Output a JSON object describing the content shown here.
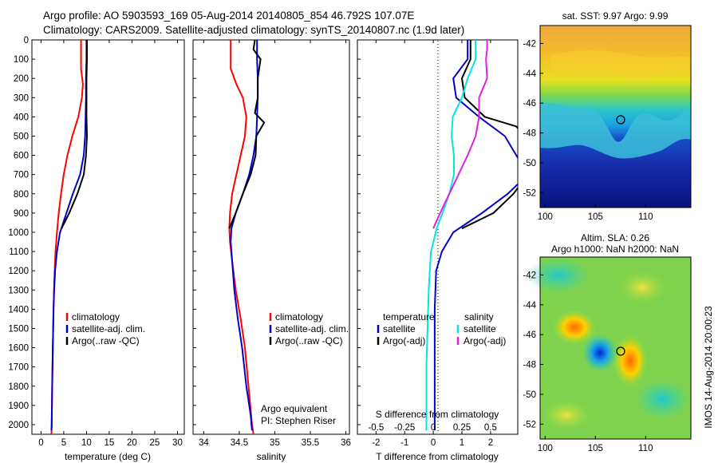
{
  "header": {
    "line1": "Argo profile: AO 5903593_169 05-Aug-2014 20140805_854 46.792S 107.07E",
    "line2": "Climatology: CARS2009. Satellite-adjusted climatology: synTS_20140807.nc (1.9d later)"
  },
  "colors": {
    "climatology": "#ff0000",
    "satellite": "#0000cc",
    "argo": "#000000",
    "salinity_satellite": "#00e5e5",
    "salinity_argo": "#e020e0"
  },
  "chart_data": [
    {
      "type": "line",
      "panel": "temperature",
      "xlabel": "temperature (deg C)",
      "xticks": [
        "0",
        "5",
        "10",
        "15",
        "20",
        "25",
        "30"
      ],
      "xlim": [
        -2,
        31.5
      ],
      "ylim": [
        0,
        2050
      ],
      "yticks": [
        "0",
        "100",
        "200",
        "300",
        "400",
        "500",
        "600",
        "700",
        "800",
        "900",
        "1000",
        "1100",
        "1200",
        "1300",
        "1400",
        "1500",
        "1600",
        "1700",
        "1800",
        "1900",
        "2000"
      ],
      "legend": [
        "climatology",
        "satellite-adj. clim.",
        "Argo(..raw -QC)"
      ],
      "series": [
        {
          "name": "climatology",
          "color": "#ff0000",
          "points": [
            [
              8.8,
              0
            ],
            [
              8.8,
              150
            ],
            [
              9.2,
              230
            ],
            [
              9.0,
              300
            ],
            [
              8.2,
              400
            ],
            [
              6.9,
              500
            ],
            [
              5.8,
              600
            ],
            [
              5.0,
              700
            ],
            [
              4.4,
              800
            ],
            [
              3.9,
              900
            ],
            [
              3.5,
              1000
            ],
            [
              3.2,
              1100
            ],
            [
              3.0,
              1200
            ],
            [
              2.85,
              1300
            ],
            [
              2.75,
              1400
            ],
            [
              2.6,
              1600
            ],
            [
              2.45,
              1800
            ],
            [
              2.35,
              2000
            ],
            [
              2.3,
              2050
            ]
          ]
        },
        {
          "name": "satellite-adj. clim.",
          "color": "#0000cc",
          "points": [
            [
              10.0,
              0
            ],
            [
              10.0,
              100
            ],
            [
              9.9,
              200
            ],
            [
              9.9,
              300
            ],
            [
              9.8,
              400
            ],
            [
              9.7,
              500
            ],
            [
              9.4,
              600
            ],
            [
              8.6,
              700
            ],
            [
              7.0,
              800
            ],
            [
              5.6,
              900
            ],
            [
              4.2,
              1000
            ],
            [
              3.5,
              1100
            ],
            [
              3.1,
              1200
            ],
            [
              2.9,
              1300
            ],
            [
              2.75,
              1400
            ],
            [
              2.6,
              1600
            ],
            [
              2.45,
              1800
            ],
            [
              2.35,
              2000
            ],
            [
              2.3,
              2030
            ]
          ]
        },
        {
          "name": "Argo(..raw -QC)",
          "color": "#000000",
          "points": [
            [
              10.1,
              0
            ],
            [
              10.1,
              100
            ],
            [
              10.0,
              200
            ],
            [
              10.0,
              300
            ],
            [
              10.0,
              400
            ],
            [
              10.1,
              500
            ],
            [
              9.9,
              600
            ],
            [
              9.4,
              700
            ],
            [
              8.0,
              800
            ],
            [
              6.2,
              900
            ],
            [
              4.5,
              980
            ]
          ]
        }
      ]
    },
    {
      "type": "line",
      "panel": "salinity",
      "xlabel": "salinity",
      "xticks": [
        "34",
        "34.5",
        "35",
        "35.5",
        "36"
      ],
      "xlim": [
        33.85,
        36.05
      ],
      "ylim": [
        0,
        2050
      ],
      "legend": [
        "climatology",
        "satellite-adj. clim.",
        "Argo(..raw -QC)"
      ],
      "annotation": [
        "Argo equivalent",
        "PI: Stephen Riser"
      ],
      "series": [
        {
          "name": "climatology",
          "color": "#ff0000",
          "points": [
            [
              34.38,
              0
            ],
            [
              34.38,
              150
            ],
            [
              34.46,
              230
            ],
            [
              34.55,
              300
            ],
            [
              34.6,
              400
            ],
            [
              34.58,
              500
            ],
            [
              34.52,
              600
            ],
            [
              34.46,
              700
            ],
            [
              34.4,
              800
            ],
            [
              34.37,
              900
            ],
            [
              34.36,
              980
            ],
            [
              34.37,
              1050
            ],
            [
              34.4,
              1150
            ],
            [
              34.45,
              1300
            ],
            [
              34.52,
              1450
            ],
            [
              34.58,
              1600
            ],
            [
              34.63,
              1800
            ],
            [
              34.68,
              2000
            ],
            [
              34.7,
              2050
            ]
          ]
        },
        {
          "name": "satellite-adj. clim.",
          "color": "#0000cc",
          "points": [
            [
              34.75,
              0
            ],
            [
              34.75,
              100
            ],
            [
              34.76,
              200
            ],
            [
              34.76,
              300
            ],
            [
              34.75,
              400
            ],
            [
              34.74,
              500
            ],
            [
              34.7,
              600
            ],
            [
              34.64,
              700
            ],
            [
              34.55,
              800
            ],
            [
              34.45,
              900
            ],
            [
              34.39,
              980
            ],
            [
              34.38,
              1050
            ],
            [
              34.4,
              1150
            ],
            [
              34.43,
              1300
            ],
            [
              34.48,
              1450
            ],
            [
              34.54,
              1600
            ],
            [
              34.6,
              1800
            ],
            [
              34.66,
              1950
            ],
            [
              34.68,
              2030
            ]
          ]
        },
        {
          "name": "Argo(..raw -QC)",
          "color": "#000000",
          "points": [
            [
              34.72,
              0
            ],
            [
              34.7,
              50
            ],
            [
              34.8,
              100
            ],
            [
              34.76,
              200
            ],
            [
              34.76,
              300
            ],
            [
              34.72,
              380
            ],
            [
              34.85,
              430
            ],
            [
              34.74,
              500
            ],
            [
              34.73,
              600
            ],
            [
              34.66,
              700
            ],
            [
              34.55,
              800
            ],
            [
              34.45,
              900
            ],
            [
              34.36,
              980
            ]
          ]
        }
      ]
    },
    {
      "type": "line",
      "panel": "difference",
      "xlabel": "T difference from climatology",
      "xlabel2": "S difference from climatology",
      "xticks": [
        "-2",
        "-1",
        "0",
        "1",
        "2"
      ],
      "xticks_s": [
        "-0.5",
        "-0.25",
        "0",
        "0.25",
        "0.5"
      ],
      "xlim": [
        -2.65,
        2.95
      ],
      "ylim": [
        0,
        2050
      ],
      "legend_titles": [
        "temperature",
        "salinity"
      ],
      "legend": [
        "satellite",
        "Argo(-adj)",
        "satellite",
        "Argo(-adj)"
      ],
      "series": [
        {
          "name": "temperature satellite",
          "color": "#0000cc",
          "points": [
            [
              1.2,
              0
            ],
            [
              1.2,
              100
            ],
            [
              0.7,
              200
            ],
            [
              0.8,
              300
            ],
            [
              1.6,
              400
            ],
            [
              2.5,
              500
            ],
            [
              2.9,
              600
            ],
            [
              3.3,
              700
            ],
            [
              2.6,
              800
            ],
            [
              1.7,
              900
            ],
            [
              0.7,
              1000
            ],
            [
              0.3,
              1100
            ],
            [
              0.1,
              1200
            ],
            [
              0.05,
              1400
            ],
            [
              0.05,
              1700
            ],
            [
              0.05,
              2030
            ]
          ]
        },
        {
          "name": "temperature Argo(-adj)",
          "color": "#000000",
          "points": [
            [
              1.3,
              0
            ],
            [
              1.3,
              100
            ],
            [
              1.0,
              200
            ],
            [
              1.1,
              300
            ],
            [
              1.8,
              400
            ],
            [
              2.9,
              450
            ],
            [
              3.2,
              500
            ],
            [
              3.2,
              600
            ],
            [
              3.3,
              700
            ],
            [
              2.8,
              800
            ],
            [
              2.1,
              900
            ],
            [
              1.0,
              980
            ]
          ]
        },
        {
          "name": "salinity satellite",
          "color": "#00e5e5",
          "points": [
            [
              0.37,
              0
            ],
            [
              0.37,
              100
            ],
            [
              0.3,
              200
            ],
            [
              0.25,
              300
            ],
            [
              0.17,
              400
            ],
            [
              0.16,
              500
            ],
            [
              0.18,
              600
            ],
            [
              0.18,
              700
            ],
            [
              0.14,
              800
            ],
            [
              0.08,
              900
            ],
            [
              0.03,
              980
            ],
            [
              -0.02,
              1100
            ],
            [
              -0.04,
              1300
            ],
            [
              -0.05,
              1500
            ],
            [
              -0.06,
              1700
            ],
            [
              -0.06,
              2030
            ]
          ]
        },
        {
          "name": "salinity Argo(-adj)",
          "color": "#e020e0",
          "points": [
            [
              0.47,
              0
            ],
            [
              0.47,
              50
            ],
            [
              0.46,
              100
            ],
            [
              0.47,
              200
            ],
            [
              0.4,
              300
            ],
            [
              0.4,
              400
            ],
            [
              0.37,
              500
            ],
            [
              0.3,
              600
            ],
            [
              0.22,
              700
            ],
            [
              0.14,
              800
            ],
            [
              0.06,
              900
            ],
            [
              0.0,
              980
            ]
          ]
        }
      ]
    },
    {
      "type": "heatmap",
      "panel": "sst",
      "title": "sat. SST: 9.97 Argo: 9.99",
      "xticks": [
        "100",
        "105",
        "110"
      ],
      "yticks": [
        "-42",
        "-44",
        "-46",
        "-48",
        "-50",
        "-52"
      ],
      "xlim": [
        99.5,
        114.5
      ],
      "ylim": [
        -53,
        -40.8
      ],
      "marker": [
        107.07,
        -46.792
      ]
    },
    {
      "type": "heatmap",
      "panel": "sla",
      "title": "Altim. SLA: 0.26",
      "subtitle": "Argo h1000: NaN h2000: NaN",
      "xticks": [
        "100",
        "105",
        "110"
      ],
      "yticks": [
        "-42",
        "-44",
        "-46",
        "-48",
        "-50",
        "-52"
      ],
      "xlim": [
        99.5,
        114.5
      ],
      "ylim": [
        -53,
        -40.8
      ],
      "marker": [
        107.07,
        -46.792
      ],
      "side_label": "IMOS 14-Aug-2014 20:00:23"
    }
  ]
}
